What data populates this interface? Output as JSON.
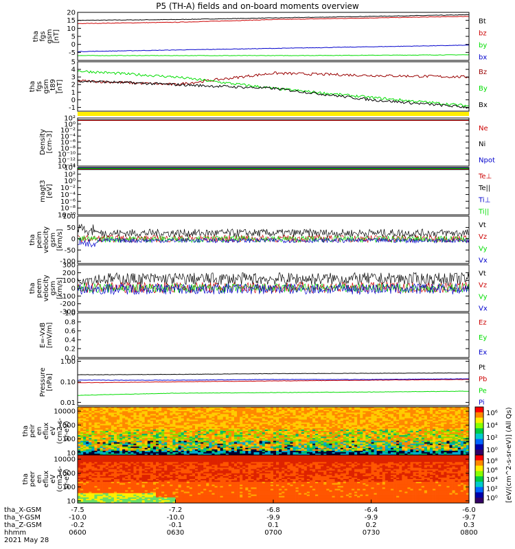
{
  "title": "P5 (TH-A) fields and on-board moments overview",
  "date_label": "2021 May 28",
  "footer": {
    "rows": [
      {
        "label": "tha_X-GSM",
        "values": [
          "-7.5",
          "-7.2",
          "-6.8",
          "-6.4",
          "-6.0"
        ]
      },
      {
        "label": "tha_Y-GSM",
        "values": [
          "-10.0",
          "-10.0",
          "-9.9",
          "-9.9",
          "-9.7"
        ]
      },
      {
        "label": "tha_Z-GSM",
        "values": [
          "-0.2",
          "-0.1",
          "0.1",
          "0.2",
          "0.3"
        ]
      },
      {
        "label": "hhmm",
        "values": [
          "0600",
          "0630",
          "0700",
          "0730",
          "0800"
        ]
      }
    ]
  },
  "colors": {
    "black": "#000000",
    "red": "#cc0000",
    "darkred": "#990000",
    "green": "#00dd00",
    "blue": "#0000cc",
    "yellow": "#ffee00"
  },
  "chart_data": [
    {
      "type": "line",
      "ylabel": [
        "tha",
        "fgs",
        "gsm",
        "[nT]"
      ],
      "ylim": [
        -10,
        20
      ],
      "ticks": [
        "20",
        "15",
        "10",
        "5",
        "0",
        "-5"
      ],
      "tick_values": [
        20,
        15,
        10,
        5,
        0,
        -5
      ],
      "x": [
        "0600",
        "0630",
        "0700",
        "0730",
        "0800"
      ],
      "series": [
        {
          "name": "Bt",
          "color": "#000000",
          "values": [
            15,
            15.5,
            16.5,
            17.5,
            18.5
          ]
        },
        {
          "name": "bz",
          "color": "#cc0000",
          "values": [
            13,
            13.8,
            15.5,
            16.5,
            17.5
          ]
        },
        {
          "name": "by",
          "color": "#00dd00",
          "values": [
            -7,
            -7,
            -7,
            -6.8,
            -6.5
          ]
        },
        {
          "name": "bx",
          "color": "#0000cc",
          "values": [
            -4.5,
            -3.5,
            -2.5,
            -1.5,
            -0.5
          ]
        }
      ]
    },
    {
      "type": "line",
      "ylabel": [
        "tha",
        "fgs",
        "gsm",
        "_t89",
        "[nT]"
      ],
      "ylim": [
        -1.5,
        5
      ],
      "ticks": [
        "5",
        "4",
        "3",
        "2",
        "1",
        "0",
        "-1"
      ],
      "tick_values": [
        5,
        4,
        3,
        2,
        1,
        0,
        -1
      ],
      "x": [
        "0600",
        "0630",
        "0700",
        "0730",
        "0800"
      ],
      "series": [
        {
          "name": "Bz",
          "color": "#990000",
          "values": [
            2.5,
            2,
            3.5,
            3.2,
            3
          ]
        },
        {
          "name": "By",
          "color": "#00dd00",
          "values": [
            3.8,
            3,
            1.5,
            0.3,
            -0.8
          ]
        },
        {
          "name": "Bx",
          "color": "#000000",
          "values": [
            2.5,
            2,
            1.5,
            0,
            -1
          ]
        }
      ]
    },
    {
      "type": "line",
      "ylabel": [
        "Density",
        "[cm-3]"
      ],
      "ylim": [
        -14,
        2
      ],
      "log": true,
      "ticks": [
        "10^2",
        "10^0",
        "10^-2",
        "10^-4",
        "10^-6",
        "10^-8",
        "10^-10",
        "10^-12",
        "10^-14"
      ],
      "tick_values": [
        2,
        0,
        -2,
        -4,
        -6,
        -8,
        -10,
        -12,
        -14
      ],
      "series": [
        {
          "name": "Ne",
          "color": "#cc0000",
          "level": 1.2
        },
        {
          "name": "Ni",
          "color": "#000000",
          "level": 1.4
        },
        {
          "name": "Npot",
          "color": "#0000cc",
          "level": -14
        }
      ]
    },
    {
      "type": "line",
      "ylabel": [
        "magt3",
        "[eV]"
      ],
      "ylim": [
        -10,
        4
      ],
      "log": true,
      "ticks": [
        "10^4",
        "10^2",
        "10^0",
        "10^-2",
        "10^-4",
        "10^-6",
        "10^-8",
        "10^-10"
      ],
      "tick_values": [
        4,
        2,
        0,
        -2,
        -4,
        -6,
        -8,
        -10
      ],
      "series": [
        {
          "name": "Te⊥",
          "color": "#cc0000",
          "level": 3.6
        },
        {
          "name": "Te||",
          "color": "#000000",
          "level": 3.4
        },
        {
          "name": "Ti⊥",
          "color": "#0000cc",
          "level": 3.8
        },
        {
          "name": "Ti||",
          "color": "#00dd00",
          "level": 3.7
        }
      ]
    },
    {
      "type": "line",
      "ylabel": [
        "tha",
        "peim",
        "velocity",
        "gsm",
        "[km/s]"
      ],
      "ylim": [
        -110,
        100
      ],
      "ticks": [
        "100",
        "50",
        "0",
        "-50",
        "-100"
      ],
      "tick_values": [
        100,
        50,
        0,
        -50,
        -100
      ],
      "series": [
        {
          "name": "Vt",
          "color": "#000000",
          "mean": 25,
          "amp": 18
        },
        {
          "name": "Vz",
          "color": "#cc0000",
          "mean": 0,
          "amp": 16
        },
        {
          "name": "Vy",
          "color": "#00dd00",
          "mean": -2,
          "amp": 14
        },
        {
          "name": "Vx",
          "color": "#0000cc",
          "mean": -8,
          "amp": 10
        }
      ]
    },
    {
      "type": "line",
      "ylabel": [
        "tha",
        "peem",
        "velocity",
        "gsm",
        "[km/s]"
      ],
      "ylim": [
        -300,
        300
      ],
      "ticks": [
        "300",
        "200",
        "100",
        "0",
        "-100",
        "-200",
        "-300"
      ],
      "tick_values": [
        300,
        200,
        100,
        0,
        -100,
        -200,
        -300
      ],
      "series": [
        {
          "name": "Vt",
          "color": "#000000",
          "mean": 120,
          "amp": 80
        },
        {
          "name": "Vz",
          "color": "#cc0000",
          "mean": 10,
          "amp": 70
        },
        {
          "name": "Vy",
          "color": "#00dd00",
          "mean": 0,
          "amp": 60
        },
        {
          "name": "Vx",
          "color": "#0000cc",
          "mean": -10,
          "amp": 70
        }
      ]
    },
    {
      "type": "line",
      "ylabel": [
        "E=-VxB",
        "[mV/m]"
      ],
      "ylim": [
        0,
        1
      ],
      "ticks": [
        "1.0",
        "0.8",
        "0.6",
        "0.4",
        "0.2",
        "0.0"
      ],
      "tick_values": [
        1,
        0.8,
        0.6,
        0.4,
        0.2,
        0
      ],
      "series": [
        {
          "name": "Ez",
          "color": "#cc0000"
        },
        {
          "name": "Ey",
          "color": "#00dd00"
        },
        {
          "name": "Ex",
          "color": "#0000cc"
        }
      ]
    },
    {
      "type": "line",
      "ylabel": [
        "Pressure",
        "[nPa]"
      ],
      "ylim": [
        0.007,
        1.3
      ],
      "log": true,
      "ticks": [
        "1.00",
        "0.10",
        "0.01"
      ],
      "tick_values": [
        1,
        0.1,
        0.01
      ],
      "series": [
        {
          "name": "Pt",
          "color": "#000000",
          "values": [
            0.22,
            0.23,
            0.25,
            0.26,
            0.27
          ]
        },
        {
          "name": "Pb",
          "color": "#cc0000",
          "values": [
            0.09,
            0.1,
            0.11,
            0.12,
            0.13
          ]
        },
        {
          "name": "Pe",
          "color": "#00dd00",
          "values": [
            0.022,
            0.028,
            0.03,
            0.032,
            0.035
          ]
        },
        {
          "name": "Pi",
          "color": "#0000cc",
          "values": [
            0.12,
            0.12,
            0.13,
            0.13,
            0.14
          ]
        }
      ]
    },
    {
      "type": "heatmap",
      "ylabel": [
        "tha",
        "peir",
        "en",
        "eflux",
        "eV",
        "(cm2-s-",
        "sr-eV)"
      ],
      "ylim": [
        7,
        20000
      ],
      "log": true,
      "ticks": [
        "10000",
        "1000",
        "100",
        "10"
      ],
      "tick_values": [
        10000,
        1000,
        100,
        10
      ]
    },
    {
      "type": "heatmap",
      "ylabel": [
        "tha",
        "peer",
        "en",
        "eflux",
        "eV",
        "(cm2-s-",
        "sr-eV)"
      ],
      "ylim": [
        7,
        20000
      ],
      "log": true,
      "ticks": [
        "10000",
        "1000",
        "100",
        "10"
      ],
      "tick_values": [
        10000,
        1000,
        100,
        10
      ]
    }
  ],
  "colorbar": {
    "label": "[eV/(cm^2-s-sr-eV)] (All Qs)",
    "upper_ticks": [
      "10^6",
      "10^4",
      "10^2",
      "10^0"
    ],
    "lower_ticks": [
      "10^8",
      "10^6",
      "10^4",
      "10^2",
      "10^0"
    ]
  }
}
